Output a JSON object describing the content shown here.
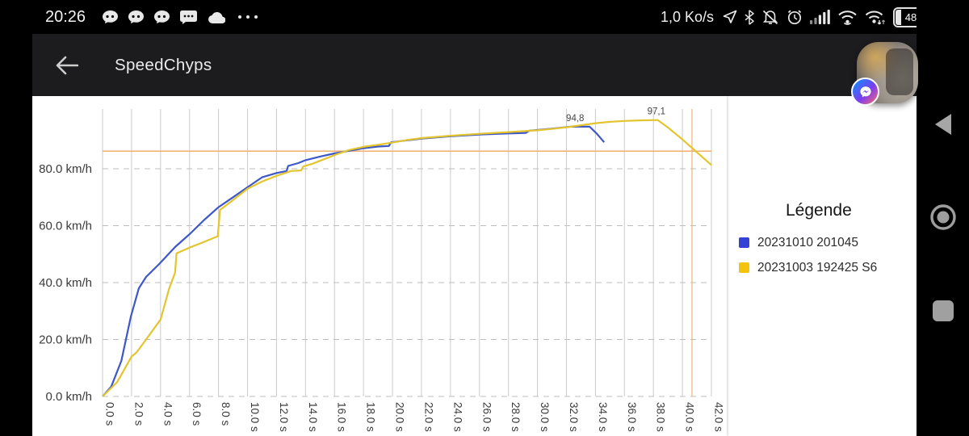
{
  "status_bar": {
    "time": "20:26",
    "network_speed": "1,0 Ko/s",
    "battery_percent": "48",
    "left_icon_names": [
      "chat-head-icon",
      "chat-head-icon",
      "chat-head-icon",
      "sms-icon",
      "cloud-icon",
      "more-notifications-icon"
    ],
    "right_icon_names": [
      "location-icon",
      "bluetooth-icon",
      "mute-icon",
      "alarm-icon",
      "signal-icon",
      "wifi-icon",
      "wifi-2-icon",
      "battery-icon"
    ]
  },
  "app_bar": {
    "title": "SpeedChyps"
  },
  "legend": {
    "title": "Légende",
    "items": [
      {
        "label": "20231010 201045",
        "color": "#3642d6"
      },
      {
        "label": "20231003 192425 S6",
        "color": "#f2c40e"
      }
    ]
  },
  "chart_data": {
    "type": "line",
    "x_unit": "s",
    "y_unit": "km/h",
    "xlim": [
      0,
      42
    ],
    "ylim": [
      0,
      101
    ],
    "grid": true,
    "legend_position": "right",
    "x_tick_labels": [
      "0.0 s",
      "2.0 s",
      "4.0 s",
      "6.0 s",
      "8.0 s",
      "10.0 s",
      "12.0 s",
      "14.0 s",
      "16.0 s",
      "18.0 s",
      "20.0 s",
      "22.0 s",
      "24.0 s",
      "26.0 s",
      "28.0 s",
      "30.0 s",
      "32.0 s",
      "34.0 s",
      "36.0 s",
      "38.0 s",
      "40.0 s",
      "42.0 s"
    ],
    "x_tick_values": [
      0,
      2,
      4,
      6,
      8,
      10,
      12,
      14,
      16,
      18,
      20,
      22,
      24,
      26,
      28,
      30,
      32,
      34,
      36,
      38,
      40,
      42
    ],
    "y_tick_labels": [
      "0.0 km/h",
      "20.0 km/h",
      "40.0 km/h",
      "60.0 km/h",
      "80.0 km/h"
    ],
    "y_tick_values": [
      0,
      20,
      40,
      60,
      80
    ],
    "reference_lines": {
      "horizontal_y_kmh": 86.2,
      "vertical_x_s": 40.66,
      "color": "#f3b376"
    },
    "series": [
      {
        "name": "20231010 201045",
        "color": "#3d57c8",
        "peak_label": {
          "text": "94,8",
          "t": 32.6,
          "v": 94.8
        },
        "points": [
          [
            0,
            0
          ],
          [
            0.6,
            3.5
          ],
          [
            1.3,
            12.5
          ],
          [
            1.95,
            28
          ],
          [
            2.5,
            38
          ],
          [
            3,
            42
          ],
          [
            3.9,
            46.5
          ],
          [
            5,
            52.5
          ],
          [
            6,
            57
          ],
          [
            7,
            62
          ],
          [
            8,
            66.5
          ],
          [
            9,
            70
          ],
          [
            10,
            73.5
          ],
          [
            11,
            77
          ],
          [
            12,
            78.5
          ],
          [
            12.7,
            79.2
          ],
          [
            12.8,
            81
          ],
          [
            13.5,
            82
          ],
          [
            14,
            83
          ],
          [
            15,
            84.3
          ],
          [
            16,
            85.4
          ],
          [
            17,
            86.3
          ],
          [
            18,
            87.2
          ],
          [
            19,
            87.8
          ],
          [
            19.75,
            88
          ],
          [
            19.9,
            89.3
          ],
          [
            21,
            90
          ],
          [
            22,
            90.6
          ],
          [
            24,
            91.4
          ],
          [
            26,
            92
          ],
          [
            28,
            92.4
          ],
          [
            29.2,
            92.6
          ],
          [
            29.45,
            93.4
          ],
          [
            31,
            94.1
          ],
          [
            32.3,
            94.8
          ],
          [
            33.6,
            94.8
          ],
          [
            34.1,
            92.3
          ],
          [
            34.6,
            89.3
          ]
        ]
      },
      {
        "name": "20231003 192425 S6",
        "color": "#e3c52f",
        "peak_label": {
          "text": "97,1",
          "t": 38.2,
          "v": 97.1
        },
        "points": [
          [
            0,
            0
          ],
          [
            1,
            5
          ],
          [
            2,
            14
          ],
          [
            2.35,
            15.5
          ],
          [
            3,
            20
          ],
          [
            4,
            27
          ],
          [
            4.6,
            38
          ],
          [
            5,
            43.5
          ],
          [
            5.1,
            50.3
          ],
          [
            6,
            52.3
          ],
          [
            7,
            54.3
          ],
          [
            7.95,
            56.3
          ],
          [
            8.1,
            65.5
          ],
          [
            9,
            69
          ],
          [
            10,
            73
          ],
          [
            11,
            75.5
          ],
          [
            12,
            77.5
          ],
          [
            13,
            79.2
          ],
          [
            13.7,
            79.4
          ],
          [
            13.85,
            80.8
          ],
          [
            14.5,
            81.8
          ],
          [
            16,
            84.8
          ],
          [
            17,
            86.6
          ],
          [
            18,
            87.7
          ],
          [
            19,
            88.4
          ],
          [
            20,
            89.2
          ],
          [
            21,
            90.1
          ],
          [
            22,
            90.8
          ],
          [
            24,
            91.6
          ],
          [
            26,
            92.3
          ],
          [
            28,
            92.9
          ],
          [
            30,
            93.5
          ],
          [
            31,
            94
          ],
          [
            32,
            94.6
          ],
          [
            33,
            95.3
          ],
          [
            34,
            96
          ],
          [
            35,
            96.5
          ],
          [
            36,
            96.8
          ],
          [
            37,
            97
          ],
          [
            38.3,
            97.1
          ],
          [
            39,
            94.5
          ],
          [
            40,
            90.3
          ],
          [
            41,
            85.8
          ],
          [
            42,
            81.3
          ]
        ]
      }
    ]
  },
  "nav": {
    "back": "back",
    "home": "home",
    "recents": "recents"
  }
}
